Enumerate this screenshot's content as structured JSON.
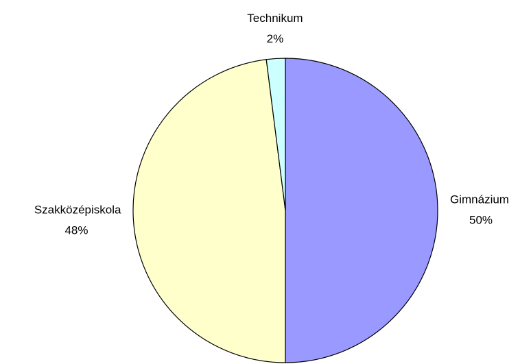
{
  "chart_data": {
    "type": "pie",
    "categories": [
      "Gimnázium",
      "Szakközépiskola",
      "Technikum"
    ],
    "values": [
      50,
      48,
      2
    ],
    "value_labels": [
      "50%",
      "48%",
      "2%"
    ],
    "colors": [
      "#9999ff",
      "#ffffcc",
      "#ccffff"
    ]
  }
}
